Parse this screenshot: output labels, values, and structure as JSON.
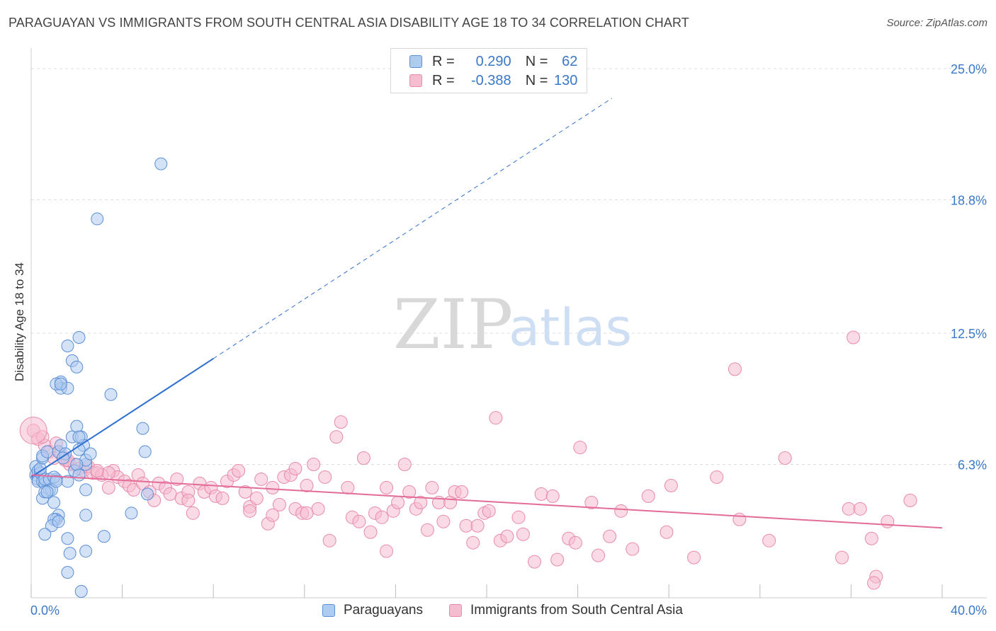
{
  "header": {
    "title": "PARAGUAYAN VS IMMIGRANTS FROM SOUTH CENTRAL ASIA DISABILITY AGE 18 TO 34 CORRELATION CHART",
    "source": "Source: ZipAtlas.com"
  },
  "watermark": {
    "zip": "ZIP",
    "atlas": "atlas"
  },
  "legend": {
    "r_label": "R =",
    "n_label": "N =",
    "rows": [
      {
        "r": "0.290",
        "n": "62"
      },
      {
        "r": "-0.388",
        "n": "130"
      }
    ]
  },
  "colors": {
    "blue_fill": "#aecbf0",
    "blue_stroke": "#5b8fd6",
    "blue_line": "#2f6fcf",
    "pink_fill": "#f6bcd0",
    "pink_stroke": "#e98aab",
    "pink_line": "#e36c98",
    "tick_text": "#3a78c9",
    "grid": "#dddddd"
  },
  "chart_data": {
    "type": "scatter",
    "title": "PARAGUAYAN VS IMMIGRANTS FROM SOUTH CENTRAL ASIA DISABILITY AGE 18 TO 34 CORRELATION CHART",
    "xlabel": "",
    "ylabel": "Disability Age 18 to 34",
    "xlim": [
      0,
      40
    ],
    "ylim": [
      0,
      25
    ],
    "x_tick_labels": [
      "0.0%",
      "40.0%"
    ],
    "y_ticks": [
      6.3,
      12.5,
      18.8,
      25.0
    ],
    "y_tick_labels": [
      "6.3%",
      "12.5%",
      "18.8%",
      "25.0%"
    ],
    "grid": true,
    "legend_position": "bottom",
    "series": [
      {
        "name": "Paraguayans",
        "color": "#aecbf0",
        "trend": {
          "x0": 0,
          "y0": 5.7,
          "x1": 8,
          "y1": 11.3,
          "x_ext": 25.5,
          "y_ext": 23.6
        },
        "points": [
          [
            0.2,
            6.2
          ],
          [
            0.2,
            5.8
          ],
          [
            0.3,
            5.6
          ],
          [
            0.3,
            5.5
          ],
          [
            0.3,
            6.0
          ],
          [
            0.4,
            5.9
          ],
          [
            0.4,
            6.1
          ],
          [
            0.5,
            5.5
          ],
          [
            0.5,
            6.6
          ],
          [
            0.6,
            5.4
          ],
          [
            0.6,
            5.6
          ],
          [
            0.8,
            5.1
          ],
          [
            0.8,
            5.6
          ],
          [
            0.5,
            6.7
          ],
          [
            0.5,
            4.7
          ],
          [
            0.7,
            6.9
          ],
          [
            1.1,
            5.6
          ],
          [
            1.0,
            5.7
          ],
          [
            0.9,
            5.1
          ],
          [
            0.6,
            5.0
          ],
          [
            0.7,
            5.0
          ],
          [
            1.2,
            6.9
          ],
          [
            1.3,
            7.2
          ],
          [
            1.5,
            6.8
          ],
          [
            1.4,
            6.6
          ],
          [
            1.6,
            5.5
          ],
          [
            1.8,
            7.6
          ],
          [
            1.9,
            6.0
          ],
          [
            2.2,
            7.6
          ],
          [
            2.3,
            7.2
          ],
          [
            2.4,
            6.3
          ],
          [
            2.4,
            6.5
          ],
          [
            2.6,
            6.8
          ],
          [
            1.8,
            11.2
          ],
          [
            2.0,
            10.9
          ],
          [
            1.3,
            10.2
          ],
          [
            1.3,
            9.9
          ],
          [
            1.6,
            9.9
          ],
          [
            1.1,
            10.1
          ],
          [
            1.3,
            10.1
          ],
          [
            2.0,
            8.1
          ],
          [
            2.1,
            7.6
          ],
          [
            2.0,
            6.3
          ],
          [
            2.1,
            5.8
          ],
          [
            1.6,
            11.9
          ],
          [
            2.1,
            12.3
          ],
          [
            1.2,
            3.9
          ],
          [
            1.1,
            3.7
          ],
          [
            1.0,
            3.7
          ],
          [
            0.9,
            3.4
          ],
          [
            1.0,
            4.5
          ],
          [
            0.6,
            3.0
          ],
          [
            1.2,
            3.6
          ],
          [
            2.4,
            3.9
          ],
          [
            2.1,
            7.0
          ],
          [
            2.4,
            2.2
          ],
          [
            2.2,
            0.3
          ],
          [
            1.6,
            2.8
          ],
          [
            1.6,
            1.2
          ],
          [
            1.7,
            2.1
          ],
          [
            5.0,
            6.9
          ],
          [
            4.9,
            8.0
          ],
          [
            4.4,
            4.0
          ],
          [
            3.2,
            2.9
          ],
          [
            3.5,
            9.6
          ],
          [
            5.1,
            4.9
          ],
          [
            5.7,
            20.5
          ],
          [
            2.9,
            17.9
          ],
          [
            1.1,
            5.5
          ],
          [
            2.4,
            5.1
          ]
        ]
      },
      {
        "name": "Immigrants from South Central Asia",
        "color": "#f6bcd0",
        "trend": {
          "x0": 0,
          "y0": 5.8,
          "x1": 40,
          "y1": 3.3
        },
        "points": [
          [
            0.1,
            7.9
          ],
          [
            0.3,
            7.5
          ],
          [
            0.6,
            7.2
          ],
          [
            0.8,
            6.9
          ],
          [
            1.0,
            6.6
          ],
          [
            0.5,
            7.6
          ],
          [
            1.3,
            6.8
          ],
          [
            1.5,
            6.5
          ],
          [
            1.7,
            6.3
          ],
          [
            1.9,
            6.3
          ],
          [
            2.1,
            6.1
          ],
          [
            2.3,
            6.0
          ],
          [
            2.5,
            6.2
          ],
          [
            2.7,
            5.9
          ],
          [
            2.9,
            5.9
          ],
          [
            3.1,
            5.8
          ],
          [
            3.4,
            5.2
          ],
          [
            3.6,
            6.0
          ],
          [
            3.8,
            5.7
          ],
          [
            4.1,
            5.5
          ],
          [
            4.3,
            5.3
          ],
          [
            4.5,
            5.1
          ],
          [
            4.7,
            5.8
          ],
          [
            4.9,
            5.4
          ],
          [
            5.2,
            5.0
          ],
          [
            5.4,
            4.6
          ],
          [
            5.6,
            5.4
          ],
          [
            5.9,
            5.2
          ],
          [
            6.1,
            4.9
          ],
          [
            6.4,
            5.6
          ],
          [
            6.6,
            4.7
          ],
          [
            6.9,
            5.0
          ],
          [
            7.1,
            4.0
          ],
          [
            7.4,
            5.4
          ],
          [
            7.6,
            5.0
          ],
          [
            7.9,
            5.2
          ],
          [
            8.1,
            4.8
          ],
          [
            8.4,
            4.7
          ],
          [
            8.6,
            5.5
          ],
          [
            8.9,
            5.8
          ],
          [
            9.1,
            6.0
          ],
          [
            9.4,
            5.0
          ],
          [
            9.6,
            4.3
          ],
          [
            9.9,
            4.7
          ],
          [
            10.1,
            5.6
          ],
          [
            10.4,
            3.5
          ],
          [
            10.6,
            5.2
          ],
          [
            10.9,
            4.4
          ],
          [
            11.1,
            5.7
          ],
          [
            11.4,
            5.8
          ],
          [
            11.6,
            4.2
          ],
          [
            11.9,
            4.0
          ],
          [
            12.1,
            5.3
          ],
          [
            12.4,
            6.3
          ],
          [
            12.6,
            4.2
          ],
          [
            12.9,
            5.7
          ],
          [
            13.1,
            2.7
          ],
          [
            13.4,
            7.6
          ],
          [
            13.6,
            8.3
          ],
          [
            13.9,
            5.2
          ],
          [
            14.1,
            3.8
          ],
          [
            14.4,
            3.6
          ],
          [
            14.6,
            6.6
          ],
          [
            14.9,
            3.1
          ],
          [
            15.1,
            4.0
          ],
          [
            15.4,
            3.8
          ],
          [
            15.6,
            5.2
          ],
          [
            15.9,
            4.1
          ],
          [
            16.1,
            4.5
          ],
          [
            16.4,
            6.3
          ],
          [
            16.6,
            5.0
          ],
          [
            16.9,
            4.2
          ],
          [
            17.1,
            4.5
          ],
          [
            17.4,
            3.2
          ],
          [
            17.6,
            5.2
          ],
          [
            17.9,
            4.5
          ],
          [
            18.1,
            3.6
          ],
          [
            18.4,
            4.5
          ],
          [
            18.6,
            5.0
          ],
          [
            18.9,
            5.0
          ],
          [
            19.1,
            3.4
          ],
          [
            19.4,
            2.6
          ],
          [
            19.6,
            3.4
          ],
          [
            19.9,
            4.0
          ],
          [
            20.1,
            4.1
          ],
          [
            20.4,
            8.5
          ],
          [
            20.6,
            2.7
          ],
          [
            20.9,
            2.9
          ],
          [
            21.4,
            3.8
          ],
          [
            22.1,
            1.7
          ],
          [
            22.4,
            4.9
          ],
          [
            22.9,
            4.8
          ],
          [
            23.1,
            1.8
          ],
          [
            23.6,
            2.8
          ],
          [
            23.9,
            2.6
          ],
          [
            24.1,
            7.1
          ],
          [
            24.6,
            4.5
          ],
          [
            24.9,
            2.0
          ],
          [
            25.4,
            2.9
          ],
          [
            25.9,
            4.1
          ],
          [
            27.9,
            3.1
          ],
          [
            28.1,
            5.3
          ],
          [
            29.1,
            1.9
          ],
          [
            30.1,
            5.7
          ],
          [
            30.9,
            10.8
          ],
          [
            31.1,
            3.7
          ],
          [
            32.4,
            2.7
          ],
          [
            33.1,
            6.6
          ],
          [
            35.6,
            1.9
          ],
          [
            35.9,
            4.2
          ],
          [
            36.1,
            12.3
          ],
          [
            36.4,
            4.2
          ],
          [
            36.9,
            2.8
          ],
          [
            37.1,
            1.0
          ],
          [
            37.6,
            3.6
          ],
          [
            38.6,
            4.6
          ],
          [
            37.0,
            0.7
          ],
          [
            26.4,
            2.3
          ],
          [
            21.6,
            3.0
          ],
          [
            10.6,
            3.9
          ],
          [
            6.9,
            4.6
          ],
          [
            3.4,
            5.9
          ],
          [
            2.9,
            6.0
          ],
          [
            1.1,
            7.3
          ],
          [
            1.6,
            6.5
          ],
          [
            27.1,
            4.8
          ],
          [
            15.6,
            2.2
          ],
          [
            12.1,
            4.0
          ],
          [
            9.6,
            4.1
          ],
          [
            11.6,
            6.1
          ]
        ]
      }
    ]
  }
}
